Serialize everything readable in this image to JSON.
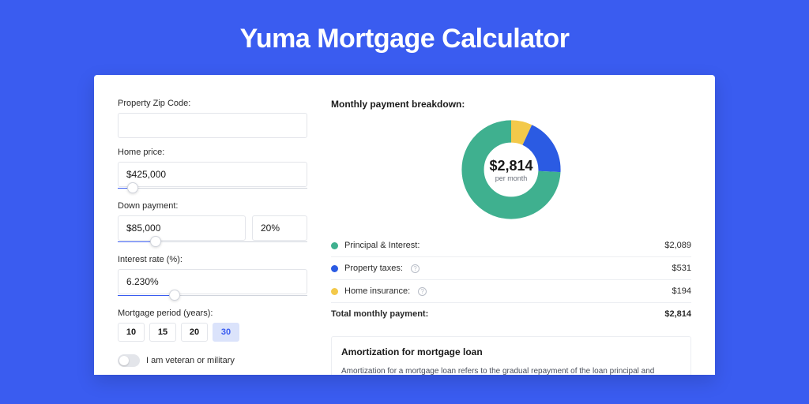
{
  "hero": {
    "title": "Yuma Mortgage Calculator",
    "bg_color": "#3a5cf0",
    "text_color": "#ffffff"
  },
  "accent_color": "#3a5cf0",
  "form": {
    "zip": {
      "label": "Property Zip Code:",
      "value": ""
    },
    "home_price": {
      "label": "Home price:",
      "value": "$425,000",
      "slider_pct": 8
    },
    "down_payment": {
      "label": "Down payment:",
      "value": "$85,000",
      "pct_value": "20%",
      "slider_pct": 20
    },
    "interest_rate": {
      "label": "Interest rate (%):",
      "value": "6.230%",
      "slider_pct": 30
    },
    "period": {
      "label": "Mortgage period (years):",
      "options": [
        "10",
        "15",
        "20",
        "30"
      ],
      "selected": "30",
      "active_bg": "#dbe3fb"
    },
    "veteran": {
      "label": "I am veteran or military",
      "checked": false
    }
  },
  "breakdown": {
    "title": "Monthly payment breakdown:",
    "donut": {
      "center_amount": "$2,814",
      "center_sub": "per month",
      "slices": [
        {
          "key": "principal_interest",
          "value": 2089,
          "color": "#3fb08f"
        },
        {
          "key": "property_taxes",
          "value": 531,
          "color": "#2b5be3"
        },
        {
          "key": "home_insurance",
          "value": 194,
          "color": "#f3c94a"
        }
      ],
      "ring_thickness_pct": 22,
      "bg_color": "#ffffff"
    },
    "rows": [
      {
        "label": "Principal & Interest:",
        "value": "$2,089",
        "color": "#3fb08f",
        "info": false
      },
      {
        "label": "Property taxes:",
        "value": "$531",
        "color": "#2b5be3",
        "info": true
      },
      {
        "label": "Home insurance:",
        "value": "$194",
        "color": "#f3c94a",
        "info": true
      }
    ],
    "total": {
      "label": "Total monthly payment:",
      "value": "$2,814"
    }
  },
  "amortization": {
    "title": "Amortization for mortgage loan",
    "text": "Amortization for a mortgage loan refers to the gradual repayment of the loan principal and interest over a specified"
  }
}
